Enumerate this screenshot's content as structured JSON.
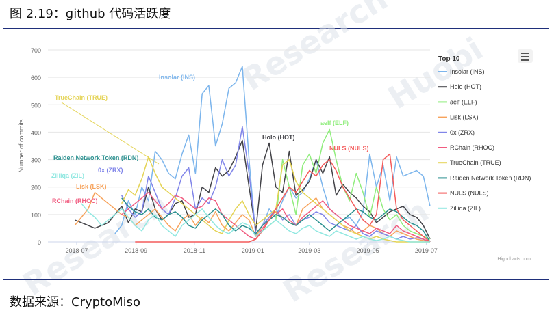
{
  "figure": {
    "title": "图 2.19：github 代码活跃度",
    "source": "数据来源：CryptoMiso",
    "credits": "Highcharts.com",
    "watermark": [
      "Research",
      "Huobi"
    ]
  },
  "chart_data": {
    "type": "line",
    "ylabel": "Number of commits",
    "ylim": [
      0,
      700
    ],
    "yticks": [
      0,
      100,
      200,
      300,
      400,
      500,
      600,
      700
    ],
    "xticks": [
      "2018-07",
      "2018-09",
      "2018-11",
      "2019-01",
      "2019-03",
      "2019-05",
      "2019-07"
    ],
    "x": [
      "2018-06-01",
      "2018-06-08",
      "2018-06-15",
      "2018-06-22",
      "2018-06-29",
      "2018-07-06",
      "2018-07-13",
      "2018-07-20",
      "2018-07-27",
      "2018-08-03",
      "2018-08-10",
      "2018-08-17",
      "2018-08-24",
      "2018-08-31",
      "2018-09-07",
      "2018-09-14",
      "2018-09-21",
      "2018-09-28",
      "2018-10-05",
      "2018-10-12",
      "2018-10-19",
      "2018-10-26",
      "2018-11-02",
      "2018-11-09",
      "2018-11-16",
      "2018-11-23",
      "2018-11-30",
      "2018-12-07",
      "2018-12-14",
      "2018-12-21",
      "2018-12-28",
      "2019-01-04",
      "2019-01-11",
      "2019-01-18",
      "2019-01-25",
      "2019-02-01",
      "2019-02-08",
      "2019-02-15",
      "2019-02-22",
      "2019-03-01",
      "2019-03-08",
      "2019-03-15",
      "2019-03-22",
      "2019-03-29",
      "2019-04-05",
      "2019-04-12",
      "2019-04-19",
      "2019-04-26",
      "2019-05-03",
      "2019-05-10",
      "2019-05-17",
      "2019-05-24",
      "2019-05-31",
      "2019-06-07",
      "2019-06-14",
      "2019-06-21",
      "2019-06-28",
      "2019-07-05"
    ],
    "legend_title": "Top 10",
    "legend_position": "right",
    "series": [
      {
        "name": "Insolar (INS)",
        "color": "#7cb5ec",
        "values": [
          null,
          null,
          null,
          null,
          null,
          null,
          null,
          null,
          null,
          null,
          30,
          60,
          150,
          100,
          200,
          150,
          330,
          300,
          250,
          230,
          320,
          390,
          250,
          540,
          570,
          350,
          430,
          560,
          580,
          640,
          300,
          20,
          60,
          120,
          90,
          150,
          200,
          160,
          180,
          230,
          300,
          200,
          120,
          100,
          80,
          90,
          60,
          110,
          320,
          200,
          280,
          150,
          310,
          240,
          250,
          260,
          240,
          130
        ]
      },
      {
        "name": "Holo (HOT)",
        "color": "#434348",
        "values": [
          null,
          null,
          null,
          null,
          80,
          70,
          60,
          50,
          60,
          70,
          100,
          130,
          70,
          120,
          110,
          200,
          120,
          80,
          100,
          140,
          150,
          90,
          100,
          200,
          180,
          270,
          240,
          260,
          310,
          370,
          200,
          40,
          280,
          360,
          200,
          180,
          330,
          170,
          190,
          220,
          300,
          250,
          310,
          170,
          210,
          180,
          160,
          130,
          110,
          70,
          90,
          110,
          120,
          130,
          100,
          90,
          60,
          10
        ]
      },
      {
        "name": "aelf (ELF)",
        "color": "#90ed7d",
        "values": [
          null,
          null,
          null,
          null,
          null,
          null,
          null,
          null,
          null,
          null,
          null,
          null,
          null,
          null,
          null,
          null,
          null,
          null,
          null,
          null,
          null,
          null,
          null,
          null,
          null,
          null,
          null,
          null,
          null,
          null,
          null,
          20,
          40,
          60,
          80,
          300,
          200,
          100,
          280,
          320,
          250,
          360,
          410,
          300,
          200,
          150,
          250,
          180,
          90,
          200,
          120,
          80,
          100,
          60,
          40,
          30,
          20,
          10
        ]
      },
      {
        "name": "Lisk (LSK)",
        "color": "#f7a35c",
        "values": [
          null,
          null,
          null,
          null,
          60,
          90,
          120,
          180,
          160,
          140,
          120,
          100,
          90,
          60,
          80,
          100,
          120,
          90,
          60,
          40,
          80,
          100,
          60,
          90,
          70,
          110,
          60,
          40,
          70,
          100,
          80,
          20,
          60,
          90,
          110,
          90,
          70,
          60,
          120,
          140,
          160,
          120,
          100,
          80,
          60,
          50,
          30,
          40,
          60,
          50,
          30,
          20,
          40,
          30,
          20,
          10,
          5,
          0
        ]
      },
      {
        "name": "0x (ZRX)",
        "color": "#8085e9",
        "values": [
          null,
          null,
          null,
          null,
          null,
          null,
          null,
          null,
          null,
          null,
          null,
          170,
          120,
          90,
          110,
          240,
          180,
          120,
          100,
          160,
          240,
          270,
          120,
          160,
          140,
          200,
          300,
          240,
          280,
          420,
          250,
          30,
          60,
          90,
          120,
          80,
          100,
          60,
          80,
          90,
          110,
          100,
          70,
          60,
          50,
          40,
          60,
          30,
          20,
          40,
          30,
          20,
          10,
          20,
          10,
          15,
          10,
          0
        ]
      },
      {
        "name": "RChain (RHOC)",
        "color": "#f15c80",
        "values": [
          null,
          null,
          null,
          null,
          null,
          null,
          null,
          null,
          null,
          null,
          null,
          100,
          120,
          140,
          160,
          180,
          150,
          120,
          140,
          170,
          160,
          140,
          120,
          130,
          160,
          150,
          100,
          80,
          60,
          40,
          20,
          10,
          50,
          80,
          100,
          120,
          80,
          60,
          90,
          110,
          130,
          150,
          120,
          100,
          80,
          60,
          50,
          40,
          30,
          50,
          40,
          30,
          60,
          40,
          30,
          20,
          10,
          0
        ]
      },
      {
        "name": "TrueChain (TRUE)",
        "color": "#e4d354",
        "values": [
          null,
          null,
          null,
          null,
          null,
          null,
          null,
          null,
          null,
          null,
          null,
          140,
          190,
          170,
          230,
          310,
          250,
          200,
          180,
          160,
          140,
          120,
          100,
          80,
          60,
          40,
          30,
          80,
          120,
          150,
          100,
          60,
          80,
          100,
          120,
          280,
          300,
          220,
          180,
          160,
          140,
          120,
          100,
          80,
          60,
          40,
          30,
          20,
          10,
          20,
          10,
          5,
          0,
          0,
          0,
          0,
          0,
          0
        ]
      },
      {
        "name": "Raiden Network Token (RDN)",
        "color": "#2b908f",
        "values": [
          null,
          null,
          null,
          null,
          null,
          null,
          null,
          null,
          null,
          null,
          null,
          160,
          130,
          110,
          100,
          120,
          90,
          80,
          100,
          110,
          90,
          60,
          50,
          80,
          100,
          120,
          100,
          60,
          40,
          60,
          50,
          30,
          60,
          80,
          100,
          90,
          70,
          60,
          80,
          100,
          80,
          60,
          40,
          60,
          80,
          100,
          120,
          110,
          90,
          80,
          100,
          120,
          110,
          90,
          70,
          60,
          40,
          0
        ]
      },
      {
        "name": "NULS (NULS)",
        "color": "#f45b5b",
        "values": [
          null,
          null,
          null,
          null,
          null,
          null,
          null,
          null,
          null,
          null,
          null,
          null,
          null,
          0,
          0,
          0,
          0,
          0,
          0,
          0,
          0,
          0,
          0,
          0,
          0,
          0,
          0,
          0,
          0,
          0,
          0,
          10,
          40,
          80,
          120,
          160,
          200,
          180,
          220,
          260,
          240,
          280,
          300,
          260,
          200,
          160,
          120,
          80,
          60,
          100,
          300,
          320,
          120,
          80,
          60,
          40,
          20,
          0
        ]
      },
      {
        "name": "Zilliqa (ZIL)",
        "color": "#91e8e1",
        "values": [
          null,
          null,
          null,
          null,
          null,
          140,
          110,
          90,
          60,
          80,
          100,
          120,
          90,
          60,
          40,
          80,
          100,
          60,
          40,
          20,
          60,
          80,
          100,
          120,
          90,
          60,
          40,
          30,
          50,
          70,
          60,
          20,
          40,
          60,
          80,
          60,
          40,
          30,
          50,
          60,
          40,
          30,
          20,
          40,
          30,
          20,
          10,
          20,
          10,
          5,
          10,
          20,
          10,
          5,
          0,
          0,
          0,
          0
        ]
      }
    ],
    "annotations": [
      {
        "text": "Insolar (INS)",
        "series": 0
      },
      {
        "text": "TrueChain (TRUE)",
        "series": 6
      },
      {
        "text": "Holo (HOT)",
        "series": 1
      },
      {
        "text": "aelf (ELF)",
        "series": 2
      },
      {
        "text": "NULS (NULS)",
        "series": 8
      },
      {
        "text": "Raiden Network Token (RDN)",
        "series": 7
      },
      {
        "text": "0x (ZRX)",
        "series": 4
      },
      {
        "text": "Zilliqa (ZIL)",
        "series": 9
      },
      {
        "text": "Lisk (LSK)",
        "series": 3
      },
      {
        "text": "RChain (RHOC)",
        "series": 5
      }
    ]
  }
}
